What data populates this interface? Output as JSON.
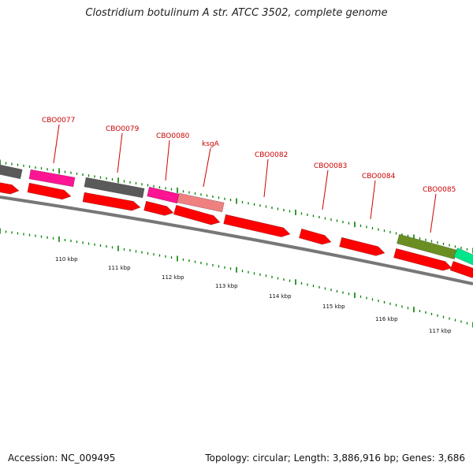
{
  "title": "Clostridium botulinum A str. ATCC 3502, complete genome",
  "footer": {
    "accession": "Accession: NC_009495",
    "info": "Topology: circular; Length: 3,886,916 bp; Genes: 3,686"
  },
  "colors": {
    "gene_red": "#ff0000",
    "gene_pink": "#ff1493",
    "gene_light_pink": "#f08080",
    "gene_gray": "#5a5a5a",
    "gene_olive": "#6b8e23",
    "gene_teal": "#00e68a",
    "label_red": "#cc0000",
    "tick_green": "#008000",
    "backbone": "#777777"
  },
  "kbp_labels": [
    "110 kbp",
    "111 kbp",
    "112 kbp",
    "113 kbp",
    "114 kbp",
    "115 kbp",
    "116 kbp",
    "117 kbp"
  ],
  "gene_labels": [
    "CBO0077",
    "CBO0079",
    "CBO0080",
    "ksgA",
    "CBO0082",
    "CBO0083",
    "CBO0084",
    "CBO0085"
  ]
}
